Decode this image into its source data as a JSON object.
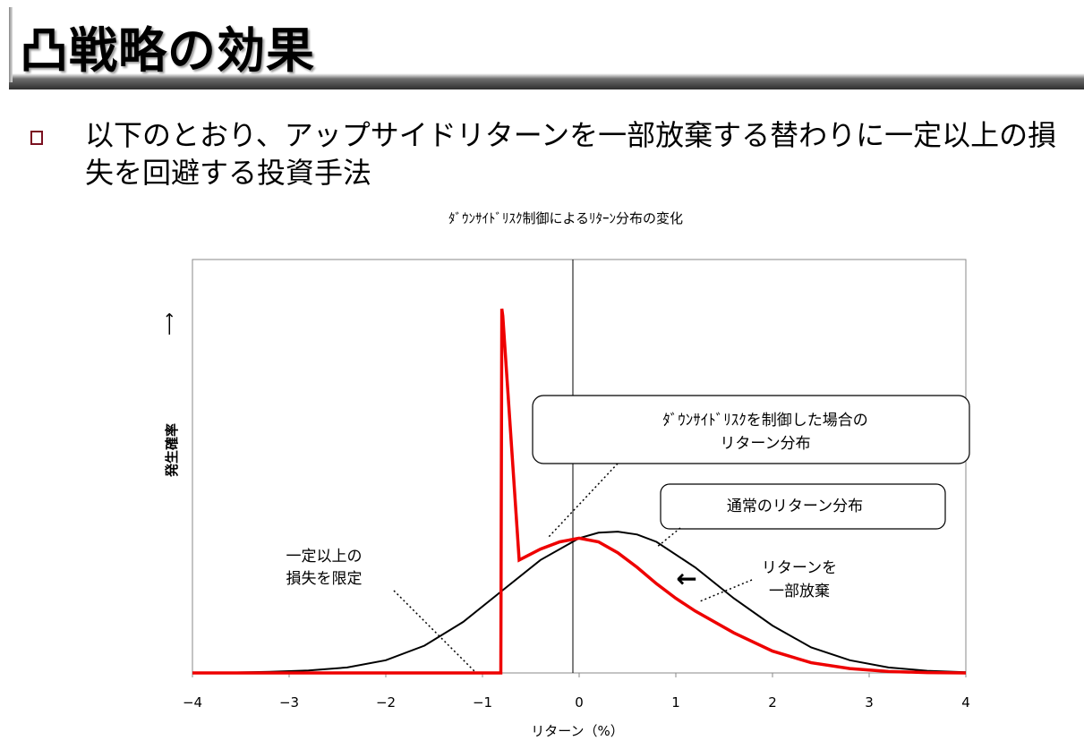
{
  "slide": {
    "title": "凸戦略の効果",
    "bullet_line1": "以下のとおり、アップサイドリターンを一部放棄する替わりに一定以上の損",
    "bullet_line2": "失を回避する投資手法"
  },
  "chart_data": {
    "type": "line",
    "title": "ﾀﾞｳﾝｻｲﾄﾞﾘｽｸ制御によるﾘﾀｰﾝ分布の変化",
    "xlabel": "リターン（%）",
    "ylabel": "発生確率",
    "ylabel_arrow": "⟶",
    "xlim": [
      -4,
      4
    ],
    "ylim": [
      0,
      1
    ],
    "xticks": [
      -4,
      -3,
      -2,
      -1,
      0,
      1,
      2,
      3,
      4
    ],
    "xtick_labels": [
      "−4",
      "−3",
      "−2",
      "−1",
      "0",
      "1",
      "2",
      "3",
      "4"
    ],
    "grid": false,
    "legend": "none",
    "vline_x": 0,
    "series": [
      {
        "key": "normal",
        "color": "#000000",
        "x": [
          -4,
          -3.6,
          -3.2,
          -2.8,
          -2.4,
          -2.0,
          -1.6,
          -1.2,
          -0.8,
          -0.4,
          0.0,
          0.2,
          0.4,
          0.6,
          0.8,
          1.2,
          1.6,
          2.0,
          2.4,
          2.8,
          3.2,
          3.6,
          4.0
        ],
        "y": [
          0.0,
          0.001,
          0.003,
          0.007,
          0.015,
          0.035,
          0.075,
          0.14,
          0.225,
          0.31,
          0.37,
          0.385,
          0.388,
          0.38,
          0.36,
          0.29,
          0.205,
          0.13,
          0.07,
          0.035,
          0.015,
          0.006,
          0.002
        ]
      },
      {
        "key": "controlled",
        "color": "#ee0000",
        "x": [
          -4,
          -0.81,
          -0.8,
          -0.79,
          -0.62,
          -0.4,
          -0.2,
          0.0,
          0.2,
          0.4,
          0.6,
          0.8,
          1.0,
          1.2,
          1.6,
          2.0,
          2.4,
          2.8,
          3.2,
          3.6,
          4.0
        ],
        "y": [
          0.0,
          0.0,
          1.0,
          0.98,
          0.31,
          0.34,
          0.36,
          0.37,
          0.36,
          0.33,
          0.29,
          0.245,
          0.205,
          0.17,
          0.11,
          0.06,
          0.028,
          0.012,
          0.004,
          0.001,
          0.0
        ]
      }
    ],
    "annotations": {
      "box1_line1": "ﾀﾞｳﾝｻｲﾄﾞﾘｽｸを制御した場合の",
      "box1_line2": "リターン分布",
      "box2": "通常のリターン分布",
      "limit_line1": "一定以上の",
      "limit_line2": "損失を限定",
      "giveup_line1": "リターンを",
      "giveup_line2": "一部放棄",
      "shift_arrow": "←"
    }
  }
}
